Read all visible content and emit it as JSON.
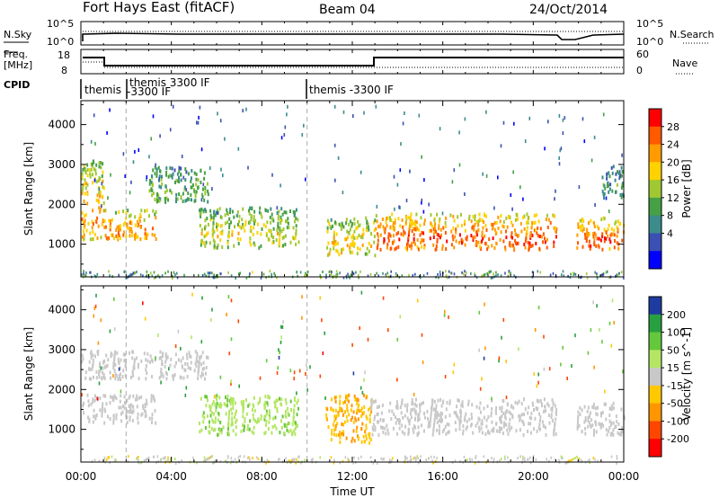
{
  "header": {
    "title": "Fort Hays East (fitACF)",
    "beam": "Beam 04",
    "date": "24/Oct/2014"
  },
  "panels": {
    "nsky_label": "N.Sky",
    "nsearch_label": "N.Search",
    "freq_label": "Freq.",
    "freq_unit": "[MHz]",
    "nave_label": "Nave",
    "cpid_label": "CPID",
    "nsky_ticks": [
      "10^5",
      "10^0"
    ],
    "nsearch_ticks": [
      "10^5",
      "10^0"
    ],
    "freq_ticks": [
      "18",
      "8"
    ],
    "nave_ticks": [
      "60",
      "0"
    ],
    "cpid_entries": [
      {
        "label": "themis",
        "start_hour": 0
      },
      {
        "label": "themis 3300 IF",
        "start_hour": 2
      },
      {
        "label": "-3300 IF",
        "start_hour": 2
      },
      {
        "label": "themis -3300 IF",
        "start_hour": 10
      }
    ]
  },
  "colorbars": {
    "power": {
      "label": "Power [dB]",
      "ticks": [
        "28",
        "24",
        "20",
        "16",
        "12",
        "8",
        "4"
      ],
      "colors": [
        "#ff0000",
        "#ff5a00",
        "#ff9b00",
        "#ffd200",
        "#a0c832",
        "#46a046",
        "#3c8c8c",
        "#3c50b4",
        "#0000ff"
      ]
    },
    "velocity": {
      "label": "Velocity [m s^-1]",
      "ticks": [
        "200",
        "100",
        "50",
        "15",
        "-15",
        "-50",
        "-100",
        "-200"
      ],
      "colors": [
        "#1e3ca0",
        "#28a040",
        "#64c83c",
        "#b4e664",
        "#c8c8c8",
        "#ffc800",
        "#ff9600",
        "#ff4600",
        "#ff0000"
      ]
    }
  },
  "chart_data": [
    {
      "type": "heatmap",
      "title": "",
      "ylabel": "Slant Range [km]",
      "ylim": [
        180,
        4600
      ],
      "xlim_hours": [
        0,
        24
      ],
      "yticks": [
        1000,
        2000,
        3000,
        4000
      ],
      "parameter": "Power",
      "regions": [
        {
          "x0": 0.0,
          "x1": 1.0,
          "y0": 1150,
          "y1": 3150,
          "dB": 20
        },
        {
          "x0": 1.0,
          "x1": 3.3,
          "y0": 1150,
          "y1": 1900,
          "dB": 22
        },
        {
          "x0": 3.0,
          "x1": 5.6,
          "y0": 2100,
          "y1": 3000,
          "dB": 12
        },
        {
          "x0": 5.2,
          "x1": 9.6,
          "y0": 950,
          "y1": 1950,
          "dB": 16
        },
        {
          "x0": 10.8,
          "x1": 13.0,
          "y0": 750,
          "y1": 1700,
          "dB": 18
        },
        {
          "x0": 13.0,
          "x1": 21.0,
          "y0": 900,
          "y1": 1800,
          "dB": 24
        },
        {
          "x0": 21.9,
          "x1": 24.0,
          "y0": 900,
          "y1": 1700,
          "dB": 24
        },
        {
          "x0": 23.0,
          "x1": 24.0,
          "y0": 2200,
          "y1": 3000,
          "dB": 10
        }
      ],
      "colorbar": "power"
    },
    {
      "type": "heatmap",
      "title": "",
      "ylabel": "Slant Range [km]",
      "ylim": [
        180,
        4600
      ],
      "xlim_hours": [
        0,
        24
      ],
      "yticks": [
        1000,
        2000,
        3000,
        4000
      ],
      "parameter": "Velocity",
      "regions": [
        {
          "x0": 0.0,
          "x1": 5.6,
          "y0": 2300,
          "y1": 3000,
          "v": 0
        },
        {
          "x0": 0.0,
          "x1": 3.3,
          "y0": 1200,
          "y1": 1900,
          "v": 0
        },
        {
          "x0": 5.2,
          "x1": 9.6,
          "y0": 900,
          "y1": 1900,
          "v": 40
        },
        {
          "x0": 10.8,
          "x1": 12.8,
          "y0": 700,
          "y1": 1900,
          "v": -45
        },
        {
          "x0": 12.8,
          "x1": 21.0,
          "y0": 900,
          "y1": 1800,
          "v": 0
        },
        {
          "x0": 21.9,
          "x1": 24.0,
          "y0": 900,
          "y1": 1700,
          "v": 0
        }
      ],
      "colorbar": "velocity"
    }
  ],
  "xaxis": {
    "ticks": [
      "00:00",
      "04:00",
      "08:00",
      "12:00",
      "16:00",
      "20:00",
      "00:00"
    ],
    "label": "Time UT"
  }
}
